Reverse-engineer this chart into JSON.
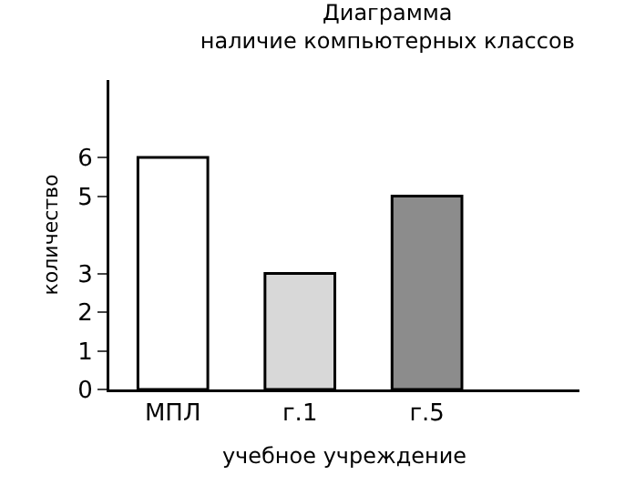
{
  "chart_data": {
    "type": "bar",
    "title": "Диаграмма",
    "subtitle": "наличие компьютерных классов",
    "xlabel": "учебное учреждение",
    "ylabel": "количество",
    "categories": [
      "МПЛ",
      "г.1",
      "г.5"
    ],
    "values": [
      6,
      3,
      5
    ],
    "colors": [
      "#ffffff",
      "#d8d8d8",
      "#8c8c8c"
    ],
    "ylim": [
      0,
      8
    ],
    "yticks": [
      0,
      1,
      2,
      3,
      5,
      6
    ],
    "grid": false
  }
}
